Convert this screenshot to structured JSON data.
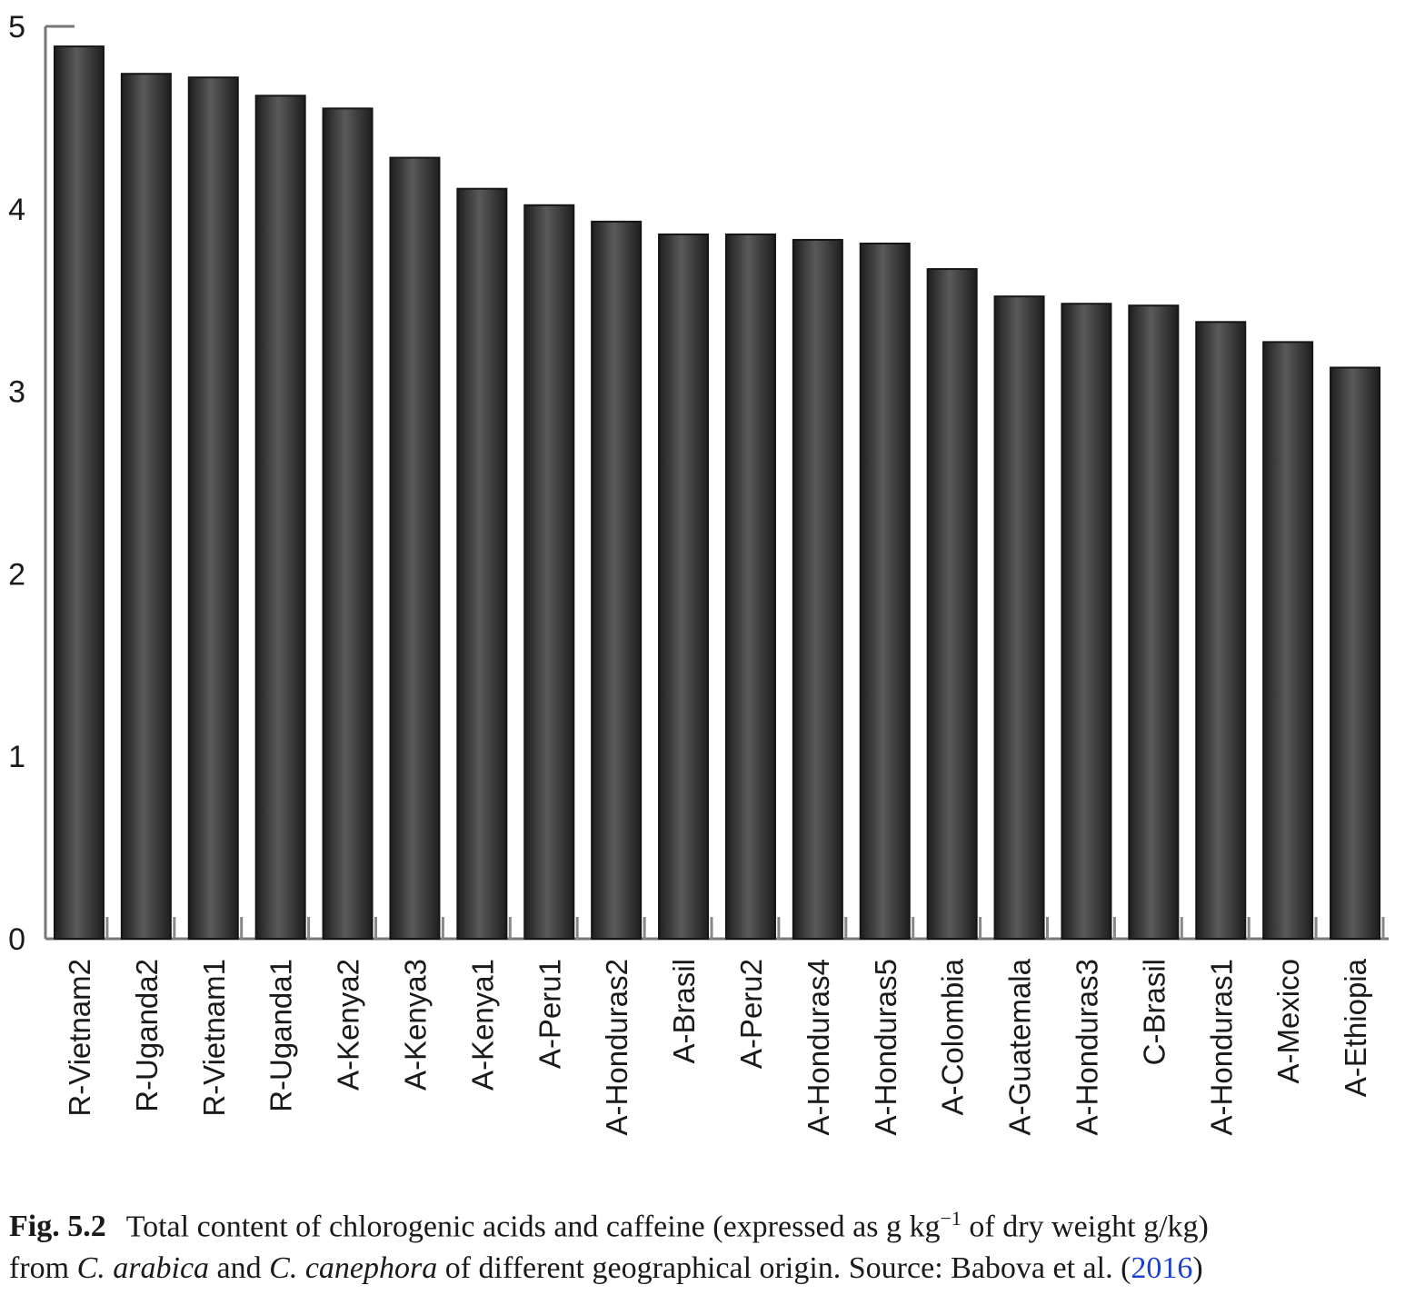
{
  "chart_data": {
    "type": "bar",
    "categories": [
      "R-Vietnam2",
      "R-Uganda2",
      "R-Vietnam1",
      "R-Uganda1",
      "A-Kenya2",
      "A-Kenya3",
      "A-Kenya1",
      "A-Peru1",
      "A-Honduras2",
      "A-Brasil",
      "A-Peru2",
      "A-Honduras4",
      "A-Honduras5",
      "A-Colombia",
      "A-Guatemala",
      "A-Honduras3",
      "C-Brasil",
      "A-Honduras1",
      "A-Mexico",
      "A-Ethiopia"
    ],
    "values": [
      4.89,
      4.74,
      4.72,
      4.62,
      4.55,
      4.28,
      4.11,
      4.02,
      3.93,
      3.86,
      3.86,
      3.83,
      3.81,
      3.67,
      3.52,
      3.48,
      3.47,
      3.38,
      3.27,
      3.13
    ],
    "ylim": [
      0,
      5
    ],
    "yticks": [
      "0",
      "1",
      "2",
      "3",
      "4",
      "5"
    ],
    "title": "",
    "xlabel": "",
    "ylabel": "",
    "bar_color": "#3a3a3a"
  },
  "caption": {
    "label": "Fig. 5.2",
    "line1_prefix": "Total content of chlorogenic acids and caffeine (expressed as g kg",
    "superscript": "−1",
    "line1_suffix": " of dry weight g/kg)",
    "line2_from": "from ",
    "species1": "C. arabica",
    "line2_and": " and ",
    "species2": "C. canephora",
    "line2_rest": " of different geographical origin. Source: Babova et al. (",
    "year_link": "2016",
    "line2_close": ")"
  }
}
